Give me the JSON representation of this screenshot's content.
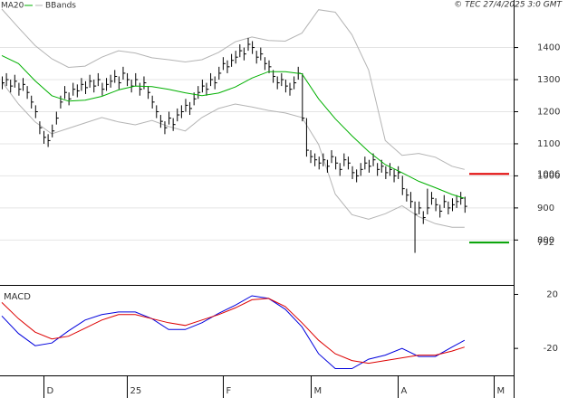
{
  "source": "© TEC 27/4/2025 3:0 GMT",
  "chart_data": [
    {
      "type": "ohlc",
      "xlim": [
        0,
        123
      ],
      "ylim": [
        660,
        1520
      ],
      "yticks": [
        800,
        900,
        1000,
        1100,
        1200,
        1300,
        1400
      ],
      "grid": true,
      "bar_color": "#000000",
      "high": [
        1310,
        1320,
        1300,
        1315,
        1290,
        1305,
        1280,
        1250,
        1220,
        1170,
        1140,
        1130,
        1160,
        1200,
        1250,
        1280,
        1260,
        1290,
        1285,
        1305,
        1295,
        1315,
        1300,
        1320,
        1290,
        1305,
        1315,
        1330,
        1310,
        1340,
        1320,
        1300,
        1320,
        1290,
        1310,
        1280,
        1250,
        1220,
        1190,
        1170,
        1200,
        1180,
        1210,
        1220,
        1240,
        1230,
        1260,
        1280,
        1300,
        1290,
        1320,
        1310,
        1340,
        1370,
        1360,
        1380,
        1390,
        1410,
        1400,
        1430,
        1420,
        1390,
        1400,
        1370,
        1360,
        1330,
        1310,
        1320,
        1300,
        1290,
        1310,
        1340,
        1320,
        1180,
        1080,
        1070,
        1060,
        1070,
        1050,
        1080,
        1060,
        1040,
        1070,
        1060,
        1030,
        1020,
        1040,
        1060,
        1050,
        1070,
        1040,
        1050,
        1030,
        1040,
        1020,
        1030,
        1000,
        960,
        950,
        920,
        920,
        890,
        960,
        950,
        930,
        910,
        940,
        920,
        930,
        940,
        950,
        935
      ],
      "low": [
        1270,
        1280,
        1260,
        1275,
        1250,
        1265,
        1240,
        1210,
        1180,
        1130,
        1100,
        1090,
        1120,
        1160,
        1210,
        1240,
        1220,
        1250,
        1245,
        1265,
        1255,
        1275,
        1260,
        1280,
        1250,
        1265,
        1275,
        1290,
        1270,
        1300,
        1280,
        1260,
        1280,
        1250,
        1270,
        1240,
        1210,
        1180,
        1150,
        1130,
        1160,
        1140,
        1170,
        1180,
        1200,
        1190,
        1220,
        1240,
        1260,
        1250,
        1280,
        1270,
        1300,
        1330,
        1320,
        1340,
        1350,
        1370,
        1360,
        1390,
        1380,
        1350,
        1360,
        1330,
        1320,
        1290,
        1270,
        1280,
        1260,
        1250,
        1270,
        1300,
        1170,
        1060,
        1040,
        1030,
        1020,
        1030,
        1010,
        1040,
        1020,
        1000,
        1030,
        1020,
        990,
        980,
        1000,
        1020,
        1010,
        1030,
        1000,
        1010,
        990,
        1000,
        980,
        990,
        940,
        920,
        900,
        760,
        880,
        850,
        880,
        910,
        890,
        870,
        900,
        880,
        890,
        900,
        910,
        885
      ],
      "close": [
        1290,
        1300,
        1280,
        1295,
        1270,
        1285,
        1260,
        1230,
        1200,
        1150,
        1120,
        1110,
        1140,
        1180,
        1230,
        1260,
        1240,
        1270,
        1265,
        1285,
        1275,
        1295,
        1280,
        1300,
        1270,
        1285,
        1295,
        1310,
        1290,
        1320,
        1300,
        1280,
        1300,
        1270,
        1290,
        1260,
        1230,
        1200,
        1170,
        1150,
        1180,
        1160,
        1190,
        1200,
        1220,
        1210,
        1240,
        1260,
        1280,
        1270,
        1300,
        1290,
        1320,
        1350,
        1340,
        1360,
        1370,
        1390,
        1380,
        1410,
        1400,
        1370,
        1380,
        1350,
        1340,
        1310,
        1290,
        1300,
        1280,
        1270,
        1290,
        1320,
        1180,
        1080,
        1060,
        1050,
        1040,
        1050,
        1030,
        1060,
        1040,
        1020,
        1050,
        1040,
        1010,
        1000,
        1020,
        1040,
        1030,
        1050,
        1020,
        1030,
        1010,
        1020,
        1000,
        1010,
        960,
        940,
        920,
        880,
        900,
        870,
        900,
        930,
        910,
        890,
        920,
        900,
        910,
        920,
        930,
        905
      ],
      "overlays": {
        "x": [
          0,
          4,
          8,
          12,
          16,
          20,
          24,
          28,
          32,
          36,
          40,
          44,
          48,
          52,
          56,
          60,
          64,
          68,
          72,
          76,
          80,
          84,
          88,
          92,
          96,
          100,
          104,
          108,
          111
        ],
        "series": [
          {
            "name": "MA20",
            "color": "#00b000",
            "values": [
              1375,
              1350,
              1296,
              1250,
              1233,
              1236,
              1248,
              1268,
              1280,
              1278,
              1270,
              1259,
              1250,
              1258,
              1277,
              1305,
              1325,
              1325,
              1318,
              1240,
              1178,
              1125,
              1076,
              1035,
              1010,
              983,
              963,
              942,
              930
            ]
          }
        ],
        "bands": {
          "name": "BBands",
          "color": "#b4b4b4",
          "upper": [
            1520,
            1462,
            1406,
            1365,
            1338,
            1342,
            1370,
            1390,
            1383,
            1368,
            1362,
            1355,
            1362,
            1385,
            1418,
            1433,
            1422,
            1420,
            1445,
            1518,
            1510,
            1440,
            1330,
            1110,
            1064,
            1070,
            1058,
            1030,
            1020
          ],
          "lower": [
            1294,
            1224,
            1168,
            1131,
            1148,
            1165,
            1182,
            1168,
            1159,
            1173,
            1154,
            1140,
            1182,
            1210,
            1224,
            1215,
            1204,
            1196,
            1182,
            1098,
            943,
            879,
            865,
            882,
            907,
            873,
            851,
            840,
            840
          ]
        }
      },
      "levels": [
        {
          "value": 1006,
          "color": "#e00000"
        },
        {
          "value": 792,
          "color": "#00a000"
        }
      ]
    },
    {
      "type": "line",
      "title": "MACD",
      "xlim": [
        0,
        123
      ],
      "ylim": [
        -40,
        25
      ],
      "yticks": [
        20,
        -20
      ],
      "xticks": [
        {
          "value": 10,
          "label": "D"
        },
        {
          "value": 30,
          "label": "25"
        },
        {
          "value": 53,
          "label": "F"
        },
        {
          "value": 74,
          "label": "M"
        },
        {
          "value": 95,
          "label": "A"
        },
        {
          "value": 118,
          "label": "M"
        }
      ],
      "x": [
        0,
        4,
        8,
        12,
        16,
        20,
        24,
        28,
        32,
        36,
        40,
        44,
        48,
        52,
        56,
        60,
        64,
        68,
        72,
        76,
        80,
        84,
        88,
        92,
        96,
        100,
        104,
        108,
        111
      ],
      "series": [
        {
          "color": "#0000dd",
          "values": [
            4,
            -9,
            -18,
            -16,
            -7,
            1,
            5,
            7,
            7,
            2,
            -6,
            -6,
            -1,
            6,
            12,
            19,
            17,
            9,
            -4,
            -24,
            -35,
            -35,
            -28,
            -25,
            -20,
            -26,
            -26,
            -19,
            -14
          ]
        },
        {
          "color": "#dd0000",
          "values": [
            14,
            2,
            -8,
            -13,
            -11,
            -5,
            1,
            5,
            5,
            2,
            -1,
            -3,
            1,
            5,
            10,
            16,
            17,
            11,
            -1,
            -14,
            -24,
            -29,
            -31,
            -29,
            -27,
            -25,
            -25,
            -22,
            -19
          ]
        }
      ]
    }
  ]
}
